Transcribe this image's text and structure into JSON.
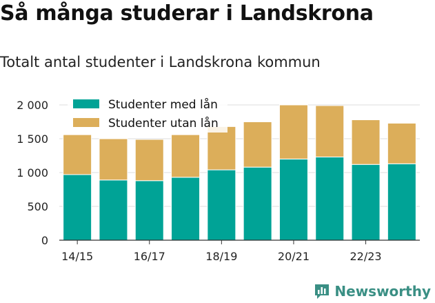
{
  "title": "Så många studerar i Landskrona",
  "subtitle": "Totalt antal studenter i Landskrona kommun",
  "brand": {
    "name": "Newsworthy",
    "icon": "bar-chart-logo-icon",
    "color": "#3a8f84"
  },
  "chart_data": {
    "type": "bar",
    "stacked": true,
    "categories": [
      "14/15",
      "15/16",
      "16/17",
      "17/18",
      "18/19",
      "19/20",
      "20/21",
      "21/22",
      "22/23",
      "23/24"
    ],
    "x_tick_labels": [
      "14/15",
      "",
      "16/17",
      "",
      "18/19",
      "",
      "20/21",
      "",
      "22/23",
      ""
    ],
    "series": [
      {
        "name": "Studenter med lån",
        "color": "#00a396",
        "values": [
          970,
          890,
          880,
          930,
          1040,
          1080,
          1200,
          1230,
          1120,
          1130
        ]
      },
      {
        "name": "Studenter utan lån",
        "color": "#dcae5a",
        "values": [
          590,
          610,
          610,
          630,
          640,
          670,
          800,
          760,
          660,
          600
        ]
      }
    ],
    "ylim": [
      0,
      2000
    ],
    "yticks": [
      0,
      500,
      1000,
      1500,
      2000
    ],
    "ytick_labels": [
      "0",
      "500",
      "1 000",
      "1 500",
      "2 000"
    ],
    "grid": true,
    "legend_position": "top-left"
  }
}
